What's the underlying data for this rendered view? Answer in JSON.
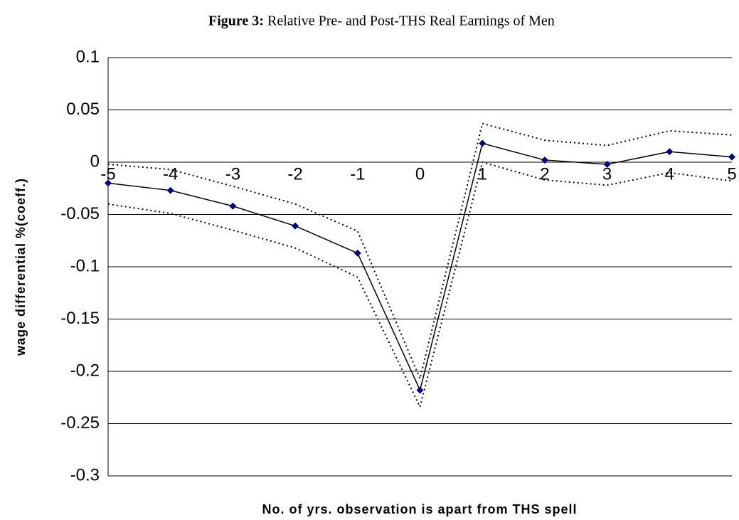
{
  "chart_data": {
    "type": "line",
    "title_label": "Figure 3:",
    "title": "Relative Pre- and Post-THS Real Earnings of Men",
    "x_label": "No. of yrs. observation is apart from THS spell",
    "y_label": "wage differential %(coeff.)",
    "x": [
      -5,
      -4,
      -3,
      -2,
      -1,
      0,
      1,
      2,
      3,
      4,
      5
    ],
    "xlim": [
      -5,
      5
    ],
    "ylim": [
      -0.3,
      0.1
    ],
    "yticks": [
      0.1,
      0.05,
      0,
      -0.05,
      -0.1,
      -0.15,
      -0.2,
      -0.25,
      -0.3
    ],
    "grid": true,
    "series": [
      {
        "color": "#000000",
        "line_style": "solid",
        "marker_color": "#000080",
        "values": [
          -0.02,
          -0.027,
          -0.042,
          -0.061,
          -0.087,
          -0.218,
          0.018,
          0.002,
          -0.002,
          0.01,
          0.005
        ]
      },
      {
        "color": "#000000",
        "line_style": "dotted",
        "values": [
          -0.002,
          -0.007,
          -0.023,
          -0.04,
          -0.066,
          -0.207,
          0.037,
          0.021,
          0.016,
          0.03,
          0.026
        ]
      },
      {
        "color": "#000000",
        "line_style": "dotted",
        "values": [
          -0.04,
          -0.049,
          -0.065,
          -0.082,
          -0.11,
          -0.234,
          0,
          -0.017,
          -0.022,
          -0.01,
          -0.018
        ]
      }
    ]
  }
}
